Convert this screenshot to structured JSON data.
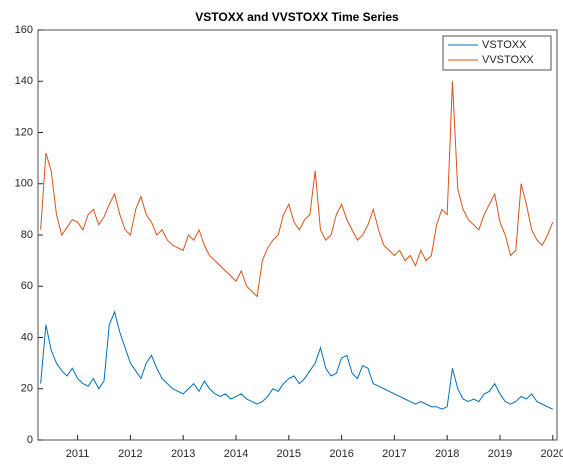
{
  "chart_data": {
    "type": "line",
    "title": "VSTOXX and VVSTOXX Time Series",
    "x": [
      2010.3,
      2010.4,
      2010.5,
      2010.6,
      2010.7,
      2010.8,
      2010.9,
      2011.0,
      2011.1,
      2011.2,
      2011.3,
      2011.4,
      2011.5,
      2011.6,
      2011.7,
      2011.8,
      2011.9,
      2012.0,
      2012.1,
      2012.2,
      2012.3,
      2012.4,
      2012.5,
      2012.6,
      2012.7,
      2012.8,
      2012.9,
      2013.0,
      2013.1,
      2013.2,
      2013.3,
      2013.4,
      2013.5,
      2013.6,
      2013.7,
      2013.8,
      2013.9,
      2014.0,
      2014.1,
      2014.2,
      2014.3,
      2014.4,
      2014.5,
      2014.6,
      2014.7,
      2014.8,
      2014.9,
      2015.0,
      2015.1,
      2015.2,
      2015.3,
      2015.4,
      2015.5,
      2015.6,
      2015.7,
      2015.8,
      2015.9,
      2016.0,
      2016.1,
      2016.2,
      2016.3,
      2016.4,
      2016.5,
      2016.6,
      2016.7,
      2016.8,
      2016.9,
      2017.0,
      2017.1,
      2017.2,
      2017.3,
      2017.4,
      2017.5,
      2017.6,
      2017.7,
      2017.8,
      2017.9,
      2018.0,
      2018.1,
      2018.2,
      2018.3,
      2018.4,
      2018.5,
      2018.6,
      2018.7,
      2018.8,
      2018.9,
      2019.0,
      2019.1,
      2019.2,
      2019.3,
      2019.4,
      2019.5,
      2019.6,
      2019.7,
      2019.8,
      2019.9,
      2020.0
    ],
    "series": [
      {
        "name": "VSTOXX",
        "color": "#0072BD",
        "values": [
          22,
          45,
          35,
          30,
          27,
          25,
          28,
          24,
          22,
          21,
          24,
          20,
          23,
          45,
          50,
          42,
          36,
          30,
          27,
          24,
          30,
          33,
          28,
          24,
          22,
          20,
          19,
          18,
          20,
          22,
          19,
          23,
          20,
          18,
          17,
          18,
          16,
          17,
          18,
          16,
          15,
          14,
          15,
          17,
          20,
          19,
          22,
          24,
          25,
          22,
          24,
          27,
          30,
          36,
          28,
          25,
          26,
          32,
          33,
          26,
          24,
          29,
          28,
          22,
          21,
          20,
          19,
          18,
          17,
          16,
          15,
          14,
          15,
          14,
          13,
          13,
          12,
          13,
          28,
          20,
          16,
          15,
          16,
          15,
          18,
          19,
          22,
          18,
          15,
          14,
          15,
          17,
          16,
          18,
          15,
          14,
          13,
          12
        ]
      },
      {
        "name": "VVSTOXX",
        "color": "#D95319",
        "values": [
          82,
          112,
          105,
          88,
          80,
          83,
          86,
          85,
          82,
          88,
          90,
          84,
          87,
          92,
          96,
          88,
          82,
          80,
          90,
          95,
          88,
          85,
          80,
          82,
          78,
          76,
          75,
          74,
          80,
          78,
          82,
          76,
          72,
          70,
          68,
          66,
          64,
          62,
          66,
          60,
          58,
          56,
          70,
          75,
          78,
          80,
          88,
          92,
          85,
          82,
          86,
          88,
          105,
          82,
          78,
          80,
          88,
          92,
          86,
          82,
          78,
          80,
          84,
          90,
          82,
          76,
          74,
          72,
          74,
          70,
          72,
          68,
          74,
          70,
          72,
          84,
          90,
          88,
          140,
          98,
          90,
          86,
          84,
          82,
          88,
          92,
          96,
          85,
          80,
          72,
          74,
          100,
          92,
          82,
          78,
          76,
          80,
          85
        ]
      }
    ],
    "xlim": [
      2010.25,
      2020.08
    ],
    "xticks": [
      2011,
      2012,
      2013,
      2014,
      2015,
      2016,
      2017,
      2018,
      2019,
      2020
    ],
    "ylim": [
      0,
      160
    ],
    "yticks": [
      0,
      20,
      40,
      60,
      80,
      100,
      120,
      140,
      160
    ],
    "grid": false,
    "legend": "top-right"
  }
}
